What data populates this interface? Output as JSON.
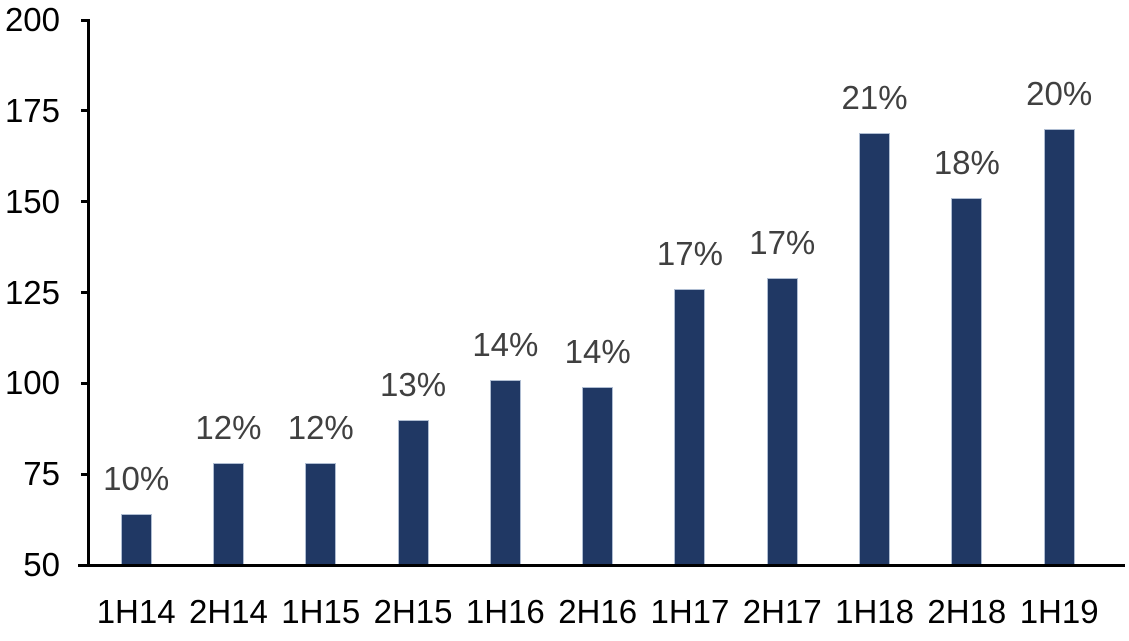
{
  "chart_data": {
    "type": "bar",
    "title": "",
    "xlabel": "",
    "ylabel": "",
    "categories": [
      "1H14",
      "2H14",
      "1H15",
      "2H15",
      "1H16",
      "2H16",
      "1H17",
      "2H17",
      "1H18",
      "2H18",
      "1H19"
    ],
    "values": [
      64,
      78,
      78,
      90,
      101,
      99,
      126,
      129,
      169,
      151,
      170
    ],
    "bar_labels": [
      "10%",
      "12%",
      "12%",
      "13%",
      "14%",
      "14%",
      "17%",
      "17%",
      "21%",
      "18%",
      "20%"
    ],
    "ylim": [
      50,
      200
    ],
    "yticks": [
      50,
      75,
      100,
      125,
      150,
      175,
      200
    ],
    "grid": false,
    "legend": false,
    "colors": {
      "bar_fill": "#203864",
      "bar_border": "#AFBDD2",
      "data_label": "#404040",
      "axis": "#000000",
      "tick_label": "#000000",
      "background": "#FFFFFF"
    }
  }
}
